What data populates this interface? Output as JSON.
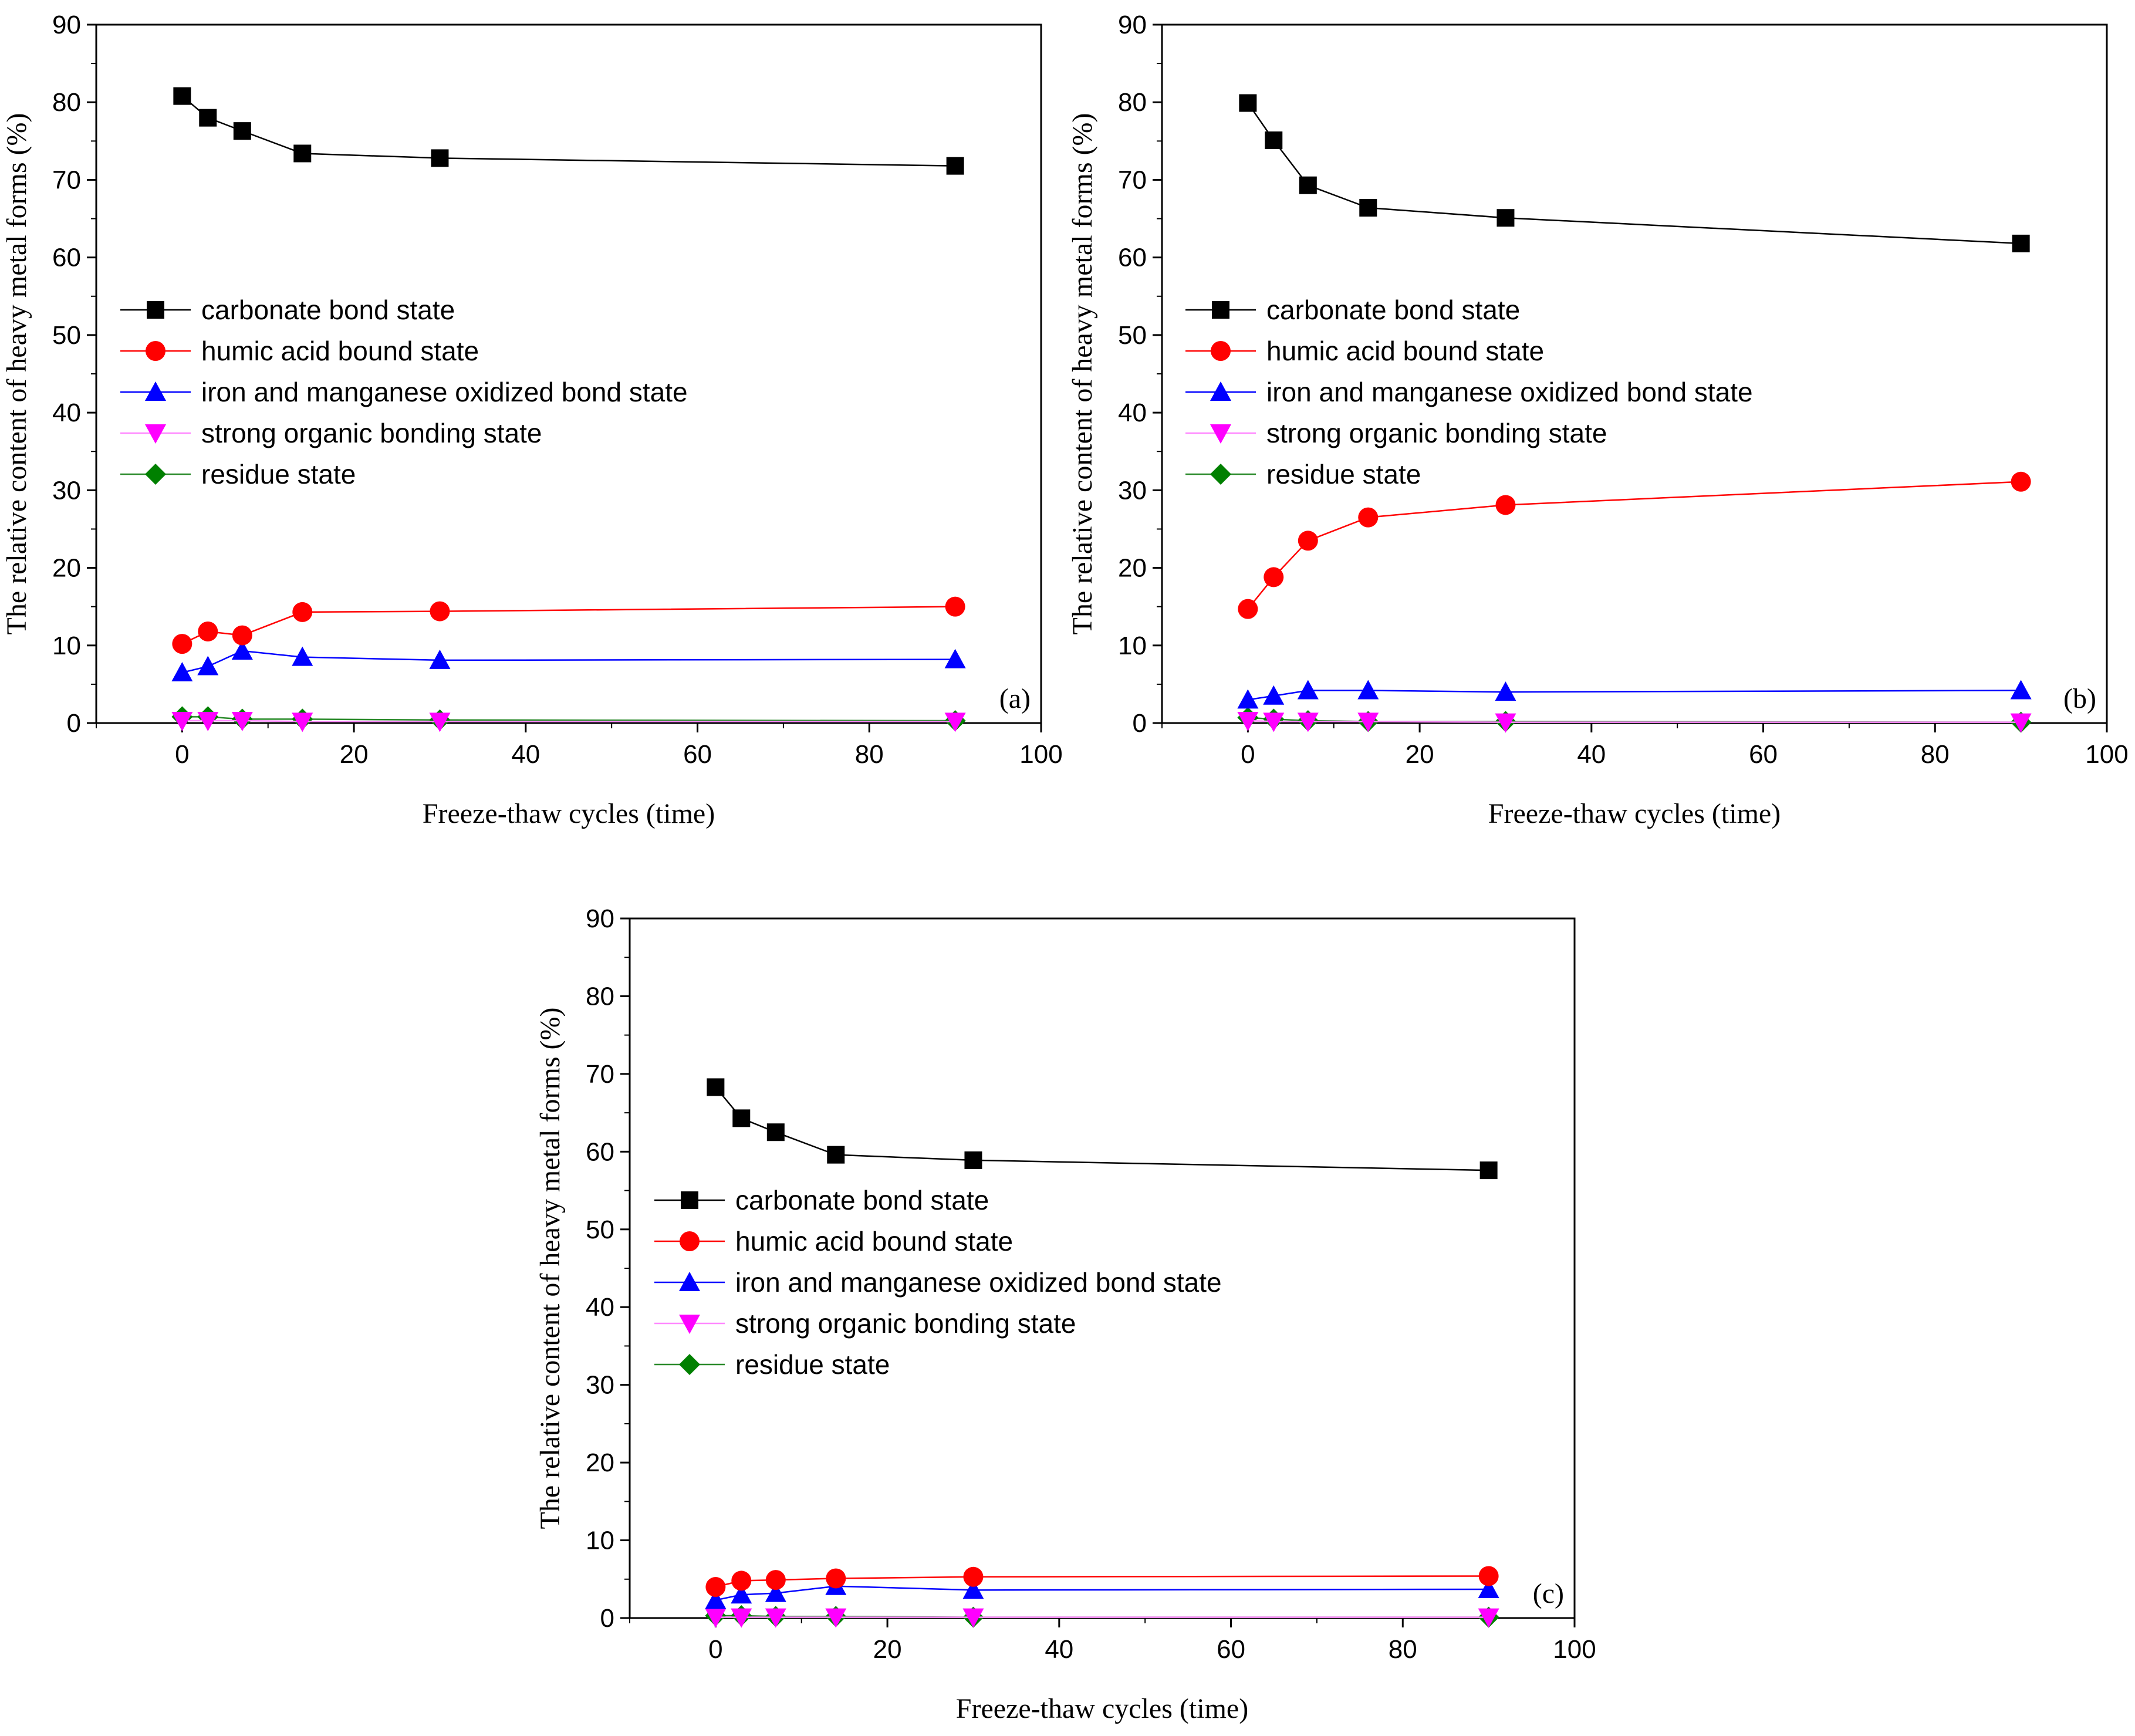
{
  "colors": {
    "carbonate": "#000000",
    "humic": "#ff0000",
    "iron": "#0000ff",
    "organic": "#ff00ff",
    "residue": "#008000",
    "organic_line": "#ff88ff",
    "residue_line": "#2a8a2a"
  },
  "legend": [
    {
      "name": "carbonate bond state",
      "marker": "square",
      "color_key": "carbonate"
    },
    {
      "name": "humic acid bound state",
      "marker": "circle",
      "color_key": "humic"
    },
    {
      "name": "iron and manganese oxidized bond state",
      "marker": "triangle-up",
      "color_key": "iron"
    },
    {
      "name": "strong organic bonding state",
      "marker": "triangle-down",
      "color_key": "organic"
    },
    {
      "name": "residue state",
      "marker": "diamond",
      "color_key": "residue"
    }
  ],
  "chart_data": [
    {
      "type": "line",
      "panel_label": "(a)",
      "title": "",
      "xlabel": "Freeze-thaw cycles (time)",
      "ylabel": "The relative content of heavy metal forms (%)",
      "xlim": [
        -10,
        100
      ],
      "ylim": [
        0,
        90
      ],
      "xticks": [
        0,
        20,
        40,
        60,
        80,
        100
      ],
      "yticks": [
        0,
        10,
        20,
        30,
        40,
        50,
        60,
        70,
        80,
        90
      ],
      "x": [
        0,
        3,
        7,
        14,
        30,
        90
      ],
      "series": [
        {
          "name": "carbonate bond state",
          "values": [
            80.8,
            78.0,
            76.3,
            73.4,
            72.8,
            71.8
          ]
        },
        {
          "name": "humic acid bound state",
          "values": [
            10.2,
            11.8,
            11.3,
            14.3,
            14.4,
            15.0
          ]
        },
        {
          "name": "iron and manganese oxidized bond state",
          "values": [
            6.5,
            7.3,
            9.3,
            8.5,
            8.1,
            8.2
          ]
        },
        {
          "name": "strong organic bonding state",
          "values": [
            0.3,
            0.3,
            0.3,
            0.2,
            0.2,
            0.2
          ]
        },
        {
          "name": "residue state",
          "values": [
            0.8,
            0.8,
            0.5,
            0.5,
            0.4,
            0.3
          ]
        }
      ]
    },
    {
      "type": "line",
      "panel_label": "(b)",
      "title": "",
      "xlabel": "Freeze-thaw cycles (time)",
      "ylabel": "The relative content of heavy metal forms (%)",
      "xlim": [
        -10,
        100
      ],
      "ylim": [
        0,
        90
      ],
      "xticks": [
        0,
        20,
        40,
        60,
        80,
        100
      ],
      "yticks": [
        0,
        10,
        20,
        30,
        40,
        50,
        60,
        70,
        80,
        90
      ],
      "x": [
        0,
        3,
        7,
        14,
        30,
        90
      ],
      "series": [
        {
          "name": "carbonate bond state",
          "values": [
            79.9,
            75.1,
            69.3,
            66.4,
            65.1,
            61.8
          ]
        },
        {
          "name": "humic acid bound state",
          "values": [
            14.7,
            18.8,
            23.5,
            26.5,
            28.1,
            31.1
          ]
        },
        {
          "name": "iron and manganese oxidized bond state",
          "values": [
            3.0,
            3.5,
            4.2,
            4.2,
            4.0,
            4.2
          ]
        },
        {
          "name": "strong organic bonding state",
          "values": [
            0.3,
            0.2,
            0.2,
            0.2,
            0.1,
            0.1
          ]
        },
        {
          "name": "residue state",
          "values": [
            0.7,
            0.5,
            0.3,
            0.2,
            0.2,
            0.1
          ]
        }
      ]
    },
    {
      "type": "line",
      "panel_label": "(c)",
      "title": "",
      "xlabel": "Freeze-thaw cycles (time)",
      "ylabel": "The relative content of heavy metal forms (%)",
      "xlim": [
        -10,
        100
      ],
      "ylim": [
        0,
        90
      ],
      "xticks": [
        0,
        20,
        40,
        60,
        80,
        100
      ],
      "yticks": [
        0,
        10,
        20,
        30,
        40,
        50,
        60,
        70,
        80,
        90
      ],
      "x": [
        0,
        3,
        7,
        14,
        30,
        90
      ],
      "series": [
        {
          "name": "carbonate bond state",
          "values": [
            68.3,
            64.3,
            62.5,
            59.6,
            58.9,
            57.6
          ]
        },
        {
          "name": "humic acid bound state",
          "values": [
            4.0,
            4.8,
            4.9,
            5.1,
            5.3,
            5.4
          ]
        },
        {
          "name": "iron and manganese oxidized bond state",
          "values": [
            2.3,
            3.0,
            3.2,
            4.1,
            3.6,
            3.7
          ]
        },
        {
          "name": "strong organic bonding state",
          "values": [
            0.1,
            0.1,
            0.1,
            0.1,
            0.1,
            0.1
          ]
        },
        {
          "name": "residue state",
          "values": [
            0.3,
            0.3,
            0.2,
            0.2,
            0.1,
            0.1
          ]
        }
      ]
    }
  ]
}
